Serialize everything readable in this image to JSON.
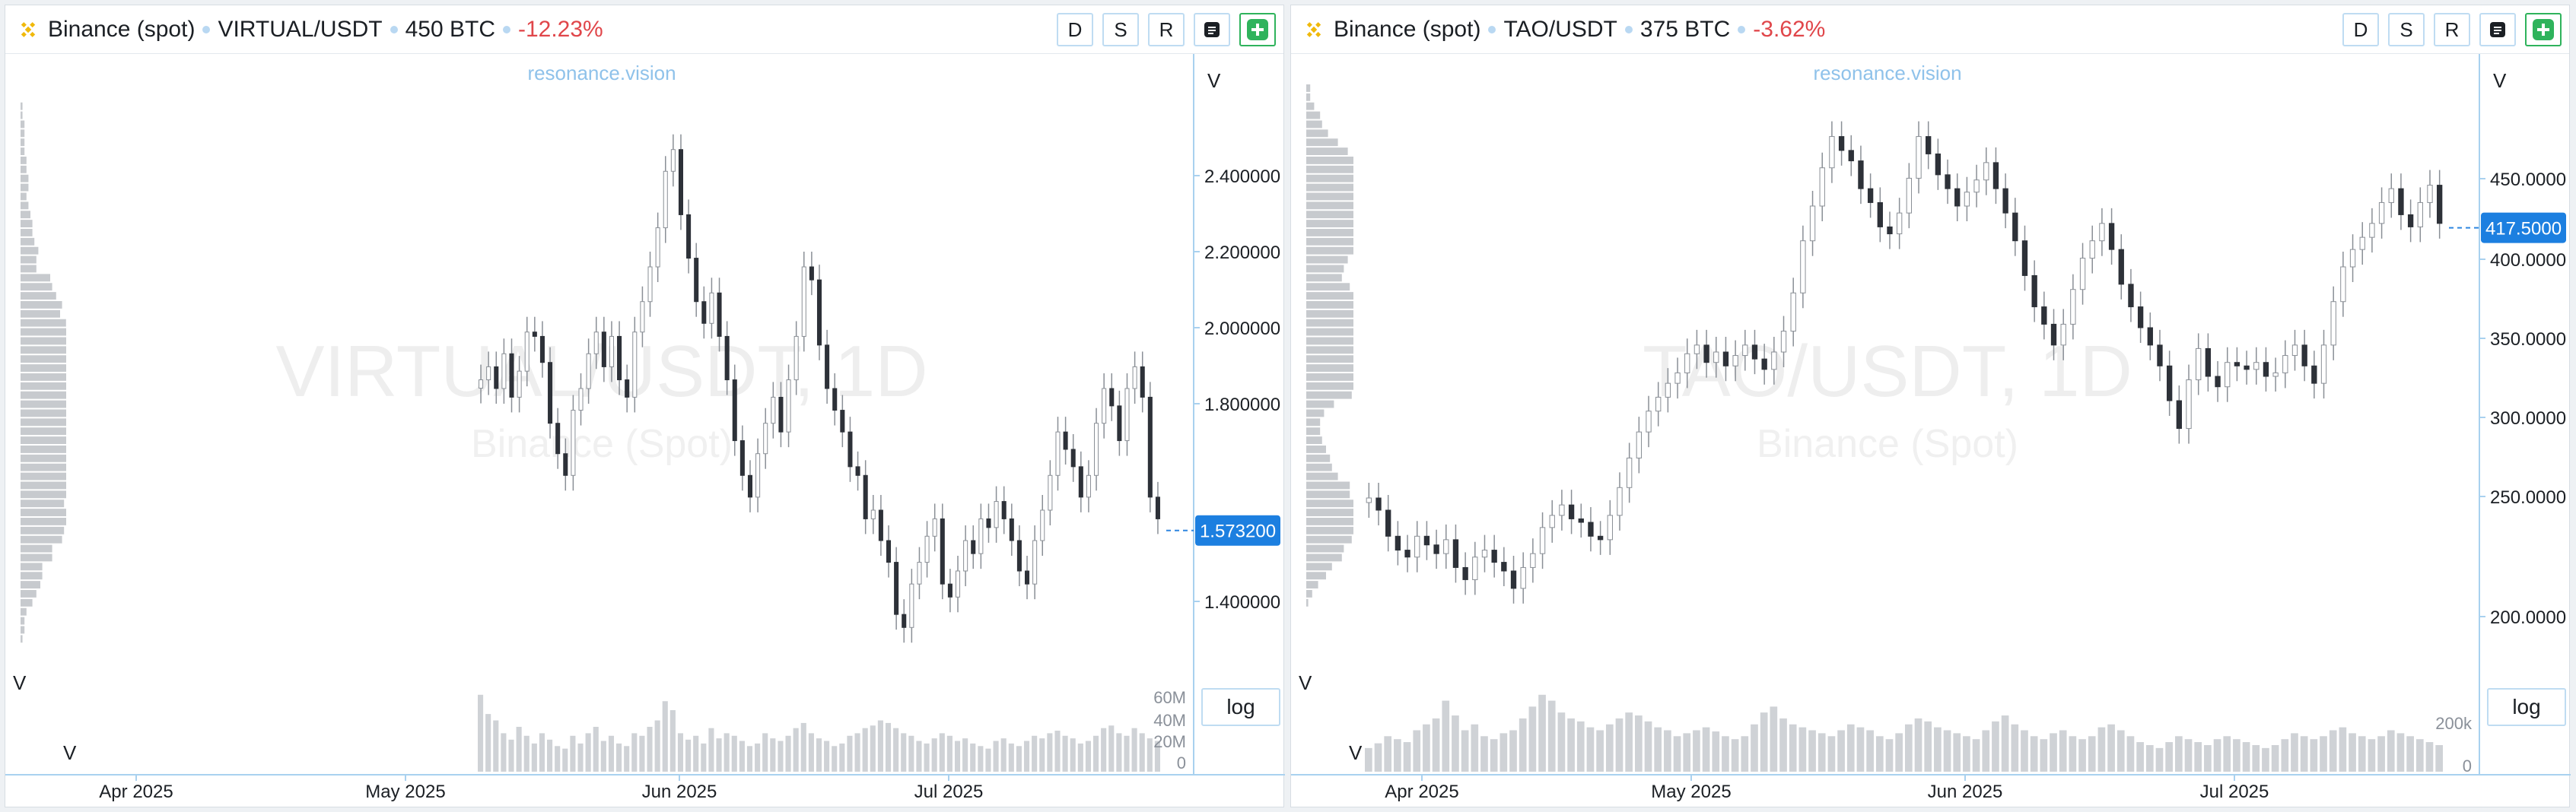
{
  "panels": [
    {
      "exchange": "Binance (spot)",
      "pair": "VIRTUAL/USDT",
      "volume": "450 BTC",
      "change": "-12.23%",
      "watermark_site": "resonance.vision",
      "watermark_title": "VIRTUAL/USDT, 1D",
      "watermark_sub": "Binance (Spot)",
      "buttons": [
        "D",
        "S",
        "R"
      ],
      "log_label": "log",
      "v_label": "V",
      "price_tag": "1.573200"
    },
    {
      "exchange": "Binance (spot)",
      "pair": "TAO/USDT",
      "volume": "375 BTC",
      "change": "-3.62%",
      "watermark_site": "resonance.vision",
      "watermark_title": "TAO/USDT, 1D",
      "watermark_sub": "Binance (Spot)",
      "buttons": [
        "D",
        "S",
        "R"
      ],
      "log_label": "log",
      "v_label": "V",
      "price_tag": "417.5000"
    }
  ],
  "chart_data": [
    {
      "type": "candlestick",
      "title": "VIRTUAL/USDT, 1D",
      "x_ticks": [
        "Apr 2025",
        "May 2025",
        "Jun 2025",
        "Jul 2025"
      ],
      "y_ticks": [
        "2.400000",
        "2.200000",
        "2.000000",
        "1.800000",
        "1.400000"
      ],
      "volume_ticks": [
        "60M",
        "40M",
        "20M",
        "0"
      ],
      "ylim": [
        1.2,
        2.6
      ],
      "last_price": 1.5732,
      "close_series": [
        1.92,
        1.95,
        1.9,
        1.98,
        1.88,
        1.94,
        2.03,
        2.02,
        1.96,
        1.82,
        1.75,
        1.7,
        1.85,
        1.9,
        1.98,
        2.03,
        1.95,
        2.02,
        1.92,
        1.88,
        2.03,
        2.1,
        2.18,
        2.27,
        2.4,
        2.45,
        2.3,
        2.2,
        2.1,
        2.05,
        2.12,
        2.02,
        1.92,
        1.78,
        1.7,
        1.65,
        1.75,
        1.82,
        1.88,
        1.8,
        1.92,
        2.02,
        2.18,
        2.15,
        2.0,
        1.9,
        1.85,
        1.8,
        1.72,
        1.7,
        1.6,
        1.62,
        1.55,
        1.5,
        1.38,
        1.35,
        1.45,
        1.5,
        1.56,
        1.6,
        1.45,
        1.42,
        1.48,
        1.55,
        1.52,
        1.6,
        1.58,
        1.64,
        1.6,
        1.55,
        1.48,
        1.45,
        1.55,
        1.62,
        1.7,
        1.8,
        1.76,
        1.72,
        1.65,
        1.7,
        1.82,
        1.9,
        1.86,
        1.78,
        1.9,
        1.95,
        1.88,
        1.65,
        1.6
      ],
      "volume_series": [
        60,
        45,
        40,
        30,
        25,
        35,
        28,
        22,
        30,
        25,
        20,
        18,
        28,
        22,
        30,
        35,
        24,
        28,
        22,
        20,
        30,
        28,
        35,
        40,
        55,
        48,
        30,
        25,
        28,
        22,
        34,
        26,
        30,
        28,
        24,
        20,
        22,
        30,
        26,
        24,
        28,
        34,
        38,
        30,
        26,
        24,
        20,
        22,
        28,
        30,
        34,
        36,
        40,
        38,
        34,
        30,
        28,
        24,
        22,
        26,
        30,
        28,
        24,
        26,
        22,
        20,
        18,
        24,
        26,
        22,
        20,
        24,
        28,
        26,
        30,
        32,
        28,
        26,
        22,
        24,
        28,
        34,
        36,
        30,
        28,
        34,
        30,
        26,
        24
      ]
    },
    {
      "type": "candlestick",
      "title": "TAO/USDT, 1D",
      "x_ticks": [
        "Apr 2025",
        "May 2025",
        "Jun 2025",
        "Jul 2025"
      ],
      "y_ticks": [
        "450.0000",
        "400.0000",
        "350.0000",
        "300.0000",
        "250.0000",
        "200.0000"
      ],
      "volume_ticks": [
        "200k",
        "0"
      ],
      "ylim": [
        150,
        500
      ],
      "last_price": 417.5,
      "close_series": [
        262,
        255,
        240,
        232,
        228,
        240,
        235,
        230,
        238,
        222,
        215,
        228,
        232,
        225,
        220,
        210,
        222,
        230,
        245,
        252,
        258,
        250,
        248,
        240,
        238,
        252,
        268,
        285,
        300,
        312,
        320,
        328,
        334,
        345,
        350,
        340,
        346,
        338,
        344,
        350,
        342,
        336,
        346,
        358,
        380,
        410,
        430,
        452,
        470,
        462,
        456,
        440,
        432,
        418,
        414,
        426,
        446,
        470,
        460,
        448,
        440,
        430,
        438,
        445,
        455,
        440,
        426,
        410,
        390,
        372,
        362,
        350,
        362,
        382,
        400,
        410,
        420,
        405,
        385,
        372,
        360,
        350,
        338,
        318,
        302,
        330,
        348,
        332,
        326,
        340,
        338,
        336,
        340,
        332,
        334,
        344,
        350,
        338,
        328,
        350,
        375,
        395,
        405,
        412,
        420,
        432,
        440,
        425,
        418,
        432,
        442,
        420
      ],
      "volume_series": [
        40,
        48,
        60,
        55,
        50,
        70,
        80,
        90,
        120,
        95,
        70,
        80,
        60,
        55,
        65,
        70,
        90,
        110,
        130,
        120,
        100,
        90,
        85,
        75,
        70,
        80,
        90,
        100,
        95,
        85,
        75,
        70,
        60,
        65,
        70,
        75,
        68,
        60,
        55,
        60,
        80,
        100,
        110,
        90,
        80,
        75,
        70,
        65,
        60,
        70,
        80,
        75,
        70,
        60,
        55,
        65,
        80,
        90,
        85,
        75,
        70,
        65,
        60,
        55,
        70,
        85,
        95,
        80,
        70,
        60,
        55,
        65,
        70,
        60,
        55,
        60,
        75,
        80,
        70,
        60,
        50,
        45,
        40,
        50,
        60,
        55,
        50,
        45,
        55,
        60,
        55,
        50,
        45,
        40,
        45,
        55,
        65,
        60,
        55,
        60,
        70,
        75,
        65,
        60,
        55,
        60,
        70,
        65,
        60,
        55,
        50,
        45
      ]
    }
  ]
}
